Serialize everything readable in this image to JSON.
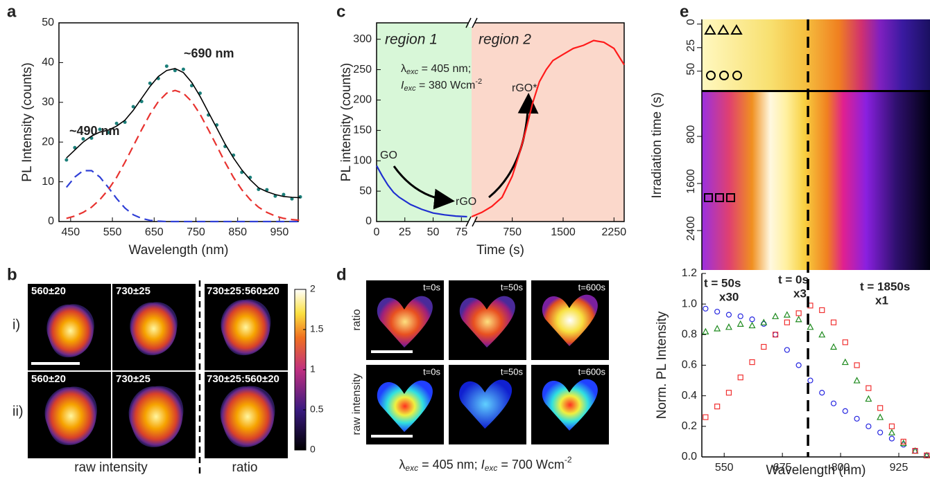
{
  "chart_data": [
    {
      "panel": "a",
      "type": "line",
      "xlabel": "Wavelength (nm)",
      "ylabel": "PL Intensity (counts)",
      "x": [
        440,
        460,
        480,
        500,
        520,
        540,
        560,
        580,
        600,
        620,
        640,
        660,
        680,
        700,
        720,
        740,
        760,
        780,
        800,
        820,
        840,
        860,
        880,
        900,
        920,
        940,
        960,
        980,
        1000
      ],
      "series": [
        {
          "style": "dots",
          "color": "#1b7f7a",
          "values": [
            15.5,
            18.6,
            20.8,
            21,
            23.2,
            22.4,
            24.7,
            25,
            28.9,
            30.2,
            34.8,
            36,
            39.1,
            38,
            38.3,
            34.2,
            32.3,
            26.8,
            24.3,
            18.9,
            16.7,
            12.4,
            11.1,
            8.1,
            8,
            6.4,
            6.8,
            5.7,
            6.2
          ]
        },
        {
          "style": "solid",
          "color": "#000000",
          "values": [
            16,
            18,
            20,
            21.5,
            22.5,
            23,
            24,
            25.5,
            28,
            31,
            34,
            36.5,
            38,
            38.5,
            37.5,
            35,
            31.5,
            27.5,
            23.5,
            19.5,
            16,
            13,
            10.5,
            8.5,
            7.5,
            6.8,
            6.3,
            6.1,
            6
          ]
        },
        {
          "style": "dashed",
          "color": "#2f3fd6",
          "values": [
            8.6,
            11.2,
            12.8,
            12.8,
            11.2,
            8.6,
            5.8,
            3.4,
            1.7,
            0.8,
            0.3,
            0.1,
            0,
            0,
            0,
            0,
            0,
            0,
            0,
            0,
            0,
            0,
            0,
            0,
            0,
            0,
            0,
            0,
            0
          ]
        },
        {
          "style": "dashed",
          "color": "#e8322f",
          "values": [
            0.8,
            1.4,
            2.3,
            3.6,
            5.5,
            8,
            11.1,
            14.9,
            19,
            23.1,
            27,
            30.2,
            32.3,
            33,
            32.3,
            30.2,
            27,
            23.1,
            19,
            14.9,
            11.1,
            8,
            5.5,
            3.6,
            2.3,
            1.4,
            0.8,
            0.5,
            0.3
          ]
        }
      ],
      "annotations": [
        {
          "text": "~490 nm",
          "color": "#3d3de0"
        },
        {
          "text": "~690 nm",
          "color": "#ef4444"
        }
      ],
      "xlim": [
        422,
        995
      ],
      "ylim": [
        0,
        50
      ],
      "xticks": [
        450,
        550,
        650,
        750,
        850,
        950
      ],
      "yticks": [
        0,
        10,
        20,
        30,
        40,
        50
      ]
    },
    {
      "panel": "c",
      "type": "line",
      "xlabel": "Time (s)",
      "ylabel": "PL intensity (counts)",
      "regions": [
        "region 1",
        "region 2"
      ],
      "region_colors": [
        "#d8f7d8",
        "#fbd8cb"
      ],
      "condition": [
        "λ",
        "exc",
        " = 405 nm;",
        "I",
        "exc",
        " = 380 Wcm",
        "-2"
      ],
      "labels": [
        "GO",
        "rGO",
        "rGO*"
      ],
      "xlim": [
        [
          0,
          84
        ],
        [
          150,
          2400
        ]
      ],
      "xticks": [
        0,
        25,
        50,
        75,
        750,
        1500,
        2250
      ],
      "ylim": [
        0,
        327
      ],
      "yticks": [
        0,
        50,
        100,
        150,
        200,
        250,
        300
      ],
      "series": [
        {
          "color": "#1f2fd0",
          "x": [
            0,
            5,
            10,
            15,
            20,
            30,
            40,
            50,
            60,
            70,
            80
          ],
          "values": [
            92,
            75,
            60,
            48,
            40,
            28,
            20,
            14,
            11,
            9,
            8
          ]
        },
        {
          "color": "#ff1a1a",
          "x": [
            150,
            300,
            450,
            600,
            750,
            850,
            950,
            1050,
            1150,
            1250,
            1350,
            1500,
            1650,
            1800,
            1950,
            2100,
            2250,
            2400
          ],
          "values": [
            8,
            15,
            25,
            40,
            75,
            110,
            150,
            195,
            230,
            250,
            265,
            275,
            285,
            290,
            298,
            295,
            285,
            258
          ]
        }
      ]
    },
    {
      "panel": "e",
      "type": "line",
      "xlabel": "Wavelength (nm)",
      "ylabel": "Norm. PL Intensity",
      "x": [
        510,
        535,
        560,
        585,
        610,
        635,
        660,
        685,
        710,
        735,
        760,
        785,
        810,
        835,
        860,
        885,
        910,
        935,
        960,
        985
      ],
      "series": [
        {
          "name": "t = 50s",
          "multiplier": "x30",
          "color": "#2525e0",
          "marker": "circle",
          "values": [
            0.97,
            0.95,
            0.93,
            0.92,
            0.9,
            0.87,
            0.8,
            0.7,
            0.6,
            0.5,
            0.42,
            0.35,
            0.3,
            0.25,
            0.2,
            0.16,
            0.12,
            0.08,
            0.04,
            0.01
          ]
        },
        {
          "name": "t = 0s",
          "multiplier": "x3",
          "color": "#1e8a1e",
          "marker": "triangle",
          "values": [
            0.82,
            0.84,
            0.85,
            0.87,
            0.86,
            0.88,
            0.92,
            0.93,
            0.9,
            0.85,
            0.8,
            0.72,
            0.62,
            0.5,
            0.38,
            0.26,
            0.16,
            0.09,
            0.04,
            0.01
          ]
        },
        {
          "name": "t = 1850s",
          "multiplier": "x1",
          "color": "#f03030",
          "marker": "square",
          "values": [
            0.26,
            0.33,
            0.42,
            0.52,
            0.62,
            0.72,
            0.8,
            0.88,
            0.94,
            0.99,
            0.96,
            0.88,
            0.75,
            0.6,
            0.45,
            0.32,
            0.2,
            0.1,
            0.04,
            0.01
          ]
        }
      ],
      "vline": 730,
      "xlim": [
        502,
        992
      ],
      "ylim": [
        0,
        1.2
      ],
      "xticks": [
        550,
        675,
        800,
        925
      ],
      "yticks": [
        {
          "value": 0,
          "label": "0.0"
        },
        0.2,
        0.4,
        0.6,
        0.8,
        {
          "value": 1,
          "label": "1.0"
        },
        1.2
      ]
    },
    {
      "type": "heatmap",
      "ylabel": "Irradiation time (s)",
      "ylim": [
        [
          -5,
          70
        ],
        [
          47,
          3070
        ]
      ],
      "yticks": [
        0,
        25,
        50,
        800,
        1600,
        2400
      ]
    }
  ],
  "panel_b": {
    "letter": "b",
    "rows": [
      "i)",
      "ii)"
    ],
    "bands": [
      "560±20",
      "730±25",
      "730±25:560±20"
    ],
    "footer": [
      "raw intensity",
      "ratio"
    ],
    "colorbar_ticks": [
      0,
      0.5,
      1,
      1.5,
      2
    ]
  },
  "panel_d": {
    "letter": "d",
    "times": [
      "t=0s",
      "t=50s",
      "t=600s"
    ],
    "rows": [
      "ratio",
      "raw intensity"
    ],
    "caption": [
      "λ",
      "exc",
      " = 405 nm;  ",
      "I",
      "exc",
      " = 700 Wcm",
      "-2"
    ]
  }
}
